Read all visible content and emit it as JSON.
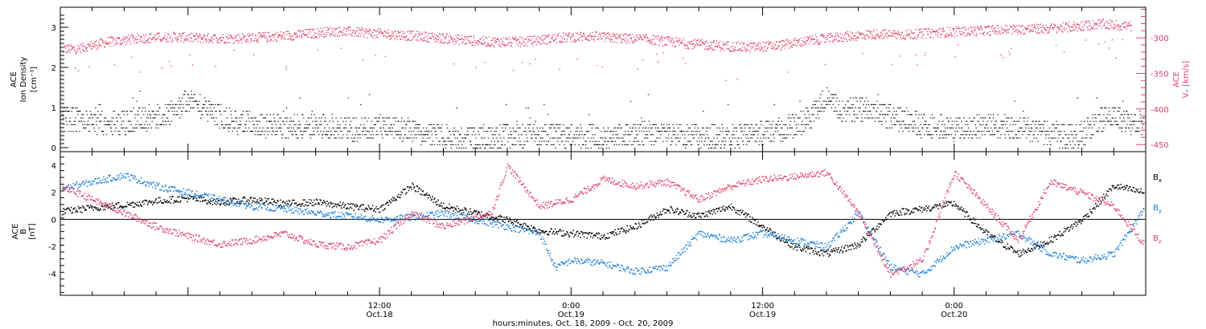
{
  "colors": {
    "density": "#000000",
    "velocity": "#e0406a",
    "bx": "#000000",
    "by": "#1a7fd8",
    "bz": "#e0406a",
    "axis": "#000000"
  },
  "chart_data": [
    {
      "type": "scatter",
      "panel": "top",
      "ylabel": [
        "ACE",
        "Ion Density",
        "[cm⁻³]"
      ],
      "ylim": [
        -0.1,
        3.5
      ],
      "yticks": [
        "0",
        "1",
        "2",
        "3"
      ],
      "right_axis": {
        "label_top": "ACE",
        "label_main": "Vₓ [km/s]",
        "ylim": [
          -460,
          -257
        ],
        "yticks": [
          "-300",
          "-350",
          "-400",
          "-450"
        ]
      },
      "xlim": [
        -8,
        60
      ],
      "series": [
        {
          "axis": "left",
          "color_key": "density",
          "x": [
            -7,
            -5,
            -3,
            -1,
            0,
            1,
            2,
            3,
            4,
            6,
            8,
            10,
            12,
            14,
            16,
            18,
            20,
            22,
            24,
            26,
            28,
            30,
            32,
            34,
            36,
            38,
            39,
            40,
            41,
            42,
            44,
            46,
            48,
            50,
            52,
            53,
            54,
            55,
            56,
            57,
            58,
            59
          ],
          "values": [
            0.7,
            0.6,
            0.7,
            0.9,
            1.2,
            1.0,
            0.8,
            0.6,
            0.6,
            0.5,
            0.6,
            0.45,
            0.55,
            0.4,
            0.3,
            0.25,
            0.3,
            0.35,
            0.3,
            0.3,
            0.35,
            0.35,
            0.3,
            0.3,
            0.4,
            0.55,
            0.8,
            1.3,
            0.9,
            1.0,
            0.8,
            0.55,
            0.5,
            0.55,
            0.5,
            0.45,
            0.35,
            0.3,
            0.35,
            0.7,
            0.8,
            0.6
          ]
        },
        {
          "axis": "right",
          "color_key": "velocity",
          "x": [
            -7,
            -5,
            -3,
            -1,
            1,
            3,
            5,
            7,
            9,
            11,
            13,
            15,
            17,
            19,
            21,
            23,
            25,
            27,
            29,
            31,
            33,
            35,
            37,
            39,
            41,
            43,
            45,
            47,
            49,
            51,
            53,
            55,
            57,
            59
          ],
          "values": [
            -315,
            -305,
            -300,
            -298,
            -300,
            -300,
            -298,
            -295,
            -290,
            -292,
            -295,
            -298,
            -302,
            -305,
            -305,
            -300,
            -297,
            -300,
            -302,
            -307,
            -310,
            -313,
            -310,
            -303,
            -298,
            -294,
            -295,
            -292,
            -290,
            -288,
            -287,
            -285,
            -280,
            -283
          ]
        }
      ]
    },
    {
      "type": "scatter",
      "panel": "bottom",
      "ylabel": [
        "ACE",
        "B",
        "[nT]"
      ],
      "ylim": [
        -5.6,
        5.0
      ],
      "yticks": [
        "4",
        "2",
        "0",
        "-2",
        "-4"
      ],
      "xlim": [
        -8,
        60
      ],
      "xticks": [
        {
          "label": "12:00",
          "sub": "Oct.18"
        },
        {
          "label": "0:00",
          "sub": "Oct.19"
        },
        {
          "label": "12:00",
          "sub": "Oct.19"
        },
        {
          "label": "0:00",
          "sub": "Oct.20"
        }
      ],
      "xlabel": "hours:minutes, Oct. 18, 2009 - Oct. 20, 2009",
      "series": [
        {
          "name": "Bx",
          "label_main": "B",
          "label_sub": "x",
          "color_key": "bx",
          "x": [
            -8,
            -6,
            -4,
            -2,
            0,
            2,
            4,
            6,
            8,
            10,
            12,
            14,
            16,
            18,
            20,
            22,
            24,
            26,
            28,
            30,
            32,
            34,
            36,
            38,
            40,
            42,
            44,
            46,
            48,
            50,
            52,
            54,
            56,
            58,
            60
          ],
          "values": [
            0.6,
            0.9,
            1.1,
            1.4,
            1.6,
            1.3,
            1.5,
            1.2,
            1.3,
            1.0,
            0.8,
            2.5,
            1.0,
            0.5,
            0.0,
            -0.8,
            -1.0,
            -1.2,
            -0.5,
            0.8,
            0.3,
            1.0,
            -0.5,
            -2.0,
            -2.5,
            -1.8,
            0.5,
            0.8,
            1.2,
            -1.0,
            -2.5,
            -1.5,
            0.0,
            2.5,
            2.0
          ]
        },
        {
          "name": "By",
          "label_main": "B",
          "label_sub": "y",
          "color_key": "by",
          "x": [
            -8,
            -6,
            -4,
            -2,
            0,
            2,
            4,
            6,
            8,
            10,
            12,
            14,
            16,
            18,
            20,
            22,
            23,
            24,
            26,
            28,
            30,
            32,
            34,
            36,
            38,
            40,
            42,
            44,
            46,
            48,
            50,
            52,
            54,
            56,
            58,
            60
          ],
          "values": [
            2.3,
            2.8,
            3.3,
            2.5,
            2.0,
            1.5,
            1.0,
            0.8,
            0.5,
            0.3,
            0.0,
            0.2,
            0.5,
            0.0,
            -0.5,
            -1.0,
            -3.5,
            -3.0,
            -3.2,
            -3.8,
            -3.5,
            -1.0,
            -1.5,
            -1.0,
            -1.5,
            -2.0,
            0.5,
            -3.5,
            -4.0,
            -2.0,
            -1.5,
            -1.0,
            -2.5,
            -3.0,
            -2.5,
            1.0
          ]
        },
        {
          "name": "Bz",
          "label_main": "B",
          "label_sub": "z",
          "color_key": "bz",
          "x": [
            -8,
            -6,
            -4,
            -2,
            0,
            2,
            4,
            6,
            8,
            10,
            12,
            14,
            16,
            18,
            19,
            20,
            22,
            24,
            26,
            28,
            30,
            32,
            34,
            36,
            38,
            40,
            42,
            44,
            46,
            48,
            50,
            52,
            54,
            56,
            58,
            60
          ],
          "values": [
            2.5,
            1.5,
            0.5,
            -0.5,
            -1.2,
            -1.8,
            -1.5,
            -1.0,
            -1.8,
            -2.0,
            -1.5,
            0.5,
            -0.5,
            0.2,
            0.5,
            4.0,
            1.0,
            1.5,
            3.0,
            2.5,
            2.8,
            1.5,
            2.5,
            3.0,
            3.2,
            3.5,
            0.5,
            -4.0,
            -3.0,
            3.5,
            1.0,
            -1.5,
            2.8,
            2.0,
            1.0,
            -2.0
          ]
        }
      ]
    }
  ]
}
